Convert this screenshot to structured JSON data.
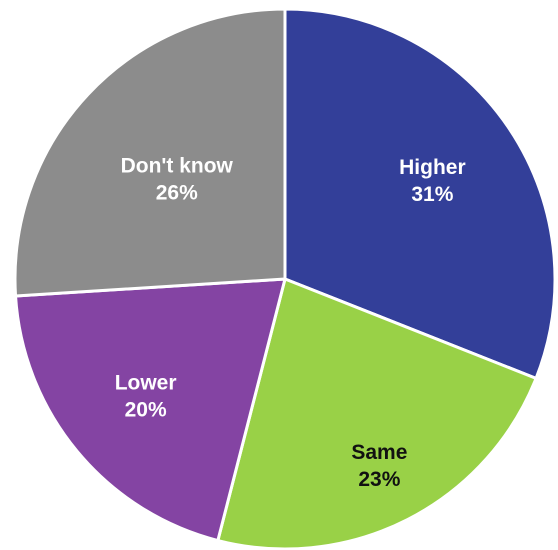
{
  "chart_data": {
    "type": "pie",
    "title": "",
    "slices": [
      {
        "label": "Higher",
        "value": 31,
        "value_label": "31%",
        "color": "#333F99",
        "label_color": "#ffffff"
      },
      {
        "label": "Same",
        "value": 23,
        "value_label": "23%",
        "color": "#99D147",
        "label_color": "#111111"
      },
      {
        "label": "Lower",
        "value": 20,
        "value_label": "20%",
        "color": "#8444A3",
        "label_color": "#ffffff"
      },
      {
        "label": "Don't know",
        "value": 26,
        "value_label": "26%",
        "color": "#8C8C8C",
        "label_color": "#ffffff"
      }
    ],
    "start_angle_deg": 0,
    "direction": "clockwise",
    "legend": "none"
  }
}
